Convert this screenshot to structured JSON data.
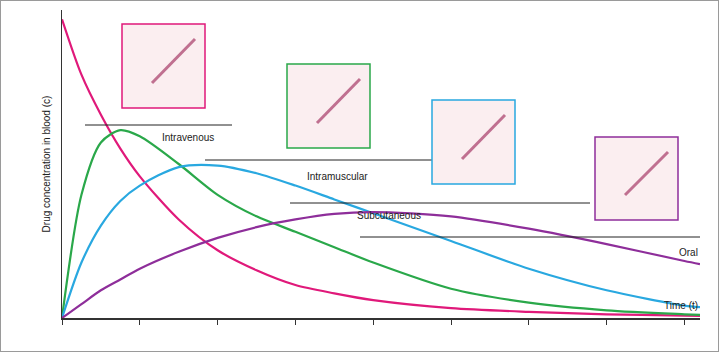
{
  "chart_data": {
    "type": "line",
    "x_label": "Time (t)",
    "y_label": "Drug concentration in blood (c)",
    "x": [
      0,
      0.25,
      0.5,
      0.75,
      1,
      1.5,
      2,
      2.5,
      3,
      3.5,
      4,
      5,
      6,
      7,
      8,
      8.2
    ],
    "series": [
      {
        "name": "Intravenous",
        "color": "#e0197a",
        "values": [
          9.7,
          7.9,
          6.6,
          5.5,
          4.6,
          3.2,
          2.2,
          1.55,
          1.07,
          0.8,
          0.58,
          0.32,
          0.2,
          0.12,
          0.08,
          0.07
        ]
      },
      {
        "name": "Intramuscular",
        "color": "#2aa84a",
        "values": [
          0,
          4.0,
          5.7,
          6.1,
          5.9,
          5.0,
          4.0,
          3.3,
          2.8,
          2.3,
          1.8,
          0.95,
          0.5,
          0.25,
          0.12,
          0.1
        ]
      },
      {
        "name": "Subcutaneous",
        "color": "#29a8e0",
        "values": [
          0,
          1.8,
          3.0,
          3.8,
          4.3,
          4.9,
          4.95,
          4.7,
          4.3,
          3.85,
          3.4,
          2.5,
          1.6,
          0.9,
          0.4,
          0.35
        ]
      },
      {
        "name": "Oral",
        "color": "#8e2e9a",
        "values": [
          0,
          0.45,
          0.9,
          1.25,
          1.6,
          2.15,
          2.6,
          2.95,
          3.2,
          3.38,
          3.44,
          3.3,
          2.9,
          2.4,
          1.85,
          1.75
        ]
      }
    ],
    "xlim": [
      0,
      8.2
    ],
    "xticks": [
      0,
      1,
      2,
      3,
      4,
      5,
      6,
      7,
      8
    ],
    "ylim": [
      0,
      10
    ],
    "yticks": [],
    "tick_labels": false,
    "grid": false
  }
}
